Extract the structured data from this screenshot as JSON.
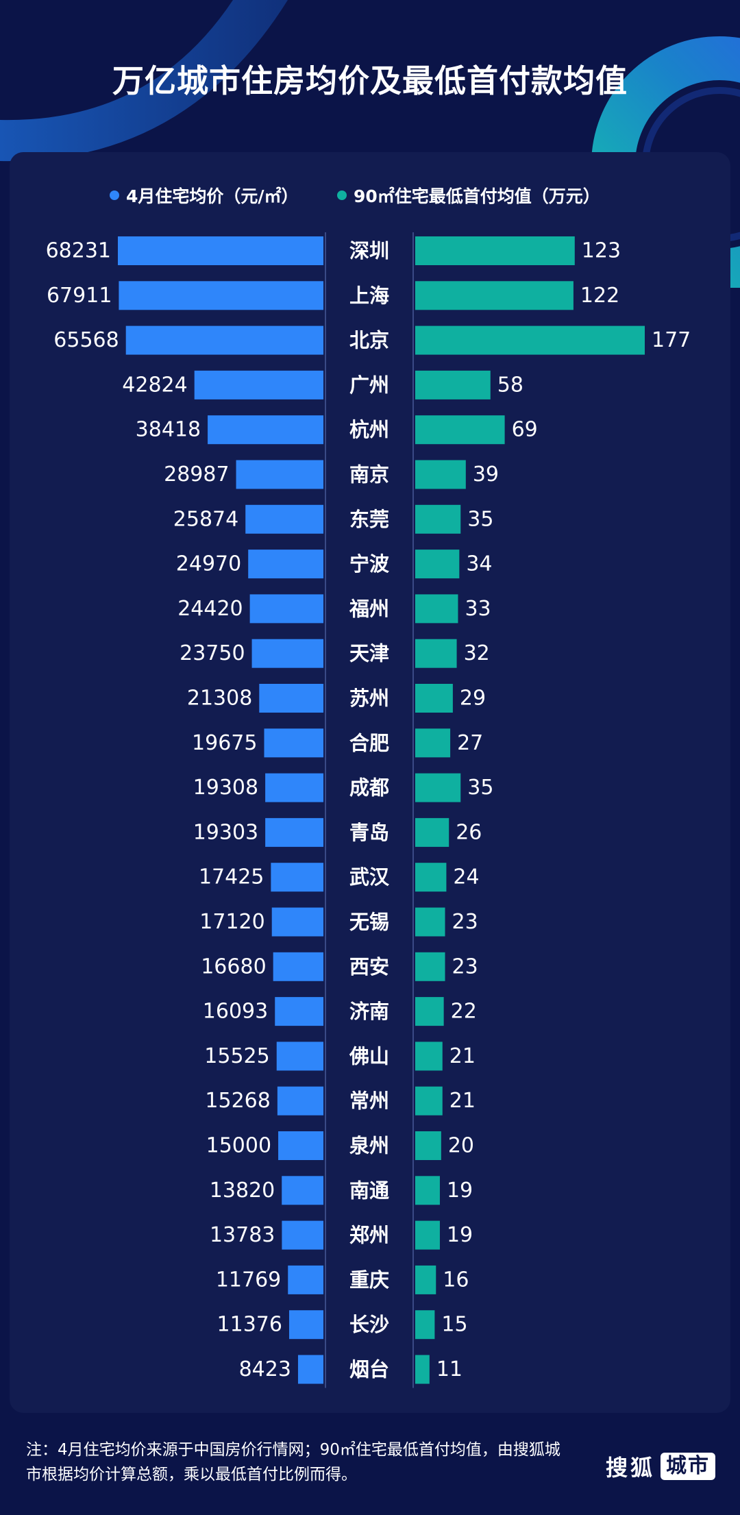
{
  "title": "万亿城市住房均价及最低首付款均值",
  "footer_note": "注：4月住宅均价来源于中国房价行情网；90㎡住宅最低首付均值，由搜狐城市根据均价计算总额，乘以最低首付比例而得。",
  "brand": {
    "name": "搜狐",
    "tag": "城市"
  },
  "colors": {
    "background": "#0b1448",
    "panel": "#121c50",
    "left_bar": "#2f86fa",
    "right_bar": "#0fb0a0"
  },
  "chart_data": {
    "type": "bar",
    "orientation": "horizontal-butterfly",
    "categories": [
      "深圳",
      "上海",
      "北京",
      "广州",
      "杭州",
      "南京",
      "东莞",
      "宁波",
      "福州",
      "天津",
      "苏州",
      "合肥",
      "成都",
      "青岛",
      "武汉",
      "无锡",
      "西安",
      "济南",
      "佛山",
      "常州",
      "泉州",
      "南通",
      "郑州",
      "重庆",
      "长沙",
      "烟台"
    ],
    "series": [
      {
        "name": "4月住宅均价（元/㎡）",
        "color": "#2f86fa",
        "values": [
          68231,
          67911,
          65568,
          42824,
          38418,
          28987,
          25874,
          24970,
          24420,
          23750,
          21308,
          19675,
          19308,
          19303,
          17425,
          17120,
          16680,
          16093,
          15525,
          15268,
          15000,
          13820,
          13783,
          11769,
          11376,
          8423
        ]
      },
      {
        "name": "90㎡住宅最低首付均值（万元）",
        "color": "#0fb0a0",
        "values": [
          123,
          122,
          177,
          58,
          69,
          39,
          35,
          34,
          33,
          32,
          29,
          27,
          35,
          26,
          24,
          23,
          23,
          22,
          21,
          21,
          20,
          19,
          19,
          16,
          15,
          11
        ]
      }
    ],
    "legend": "top",
    "grid": false
  }
}
